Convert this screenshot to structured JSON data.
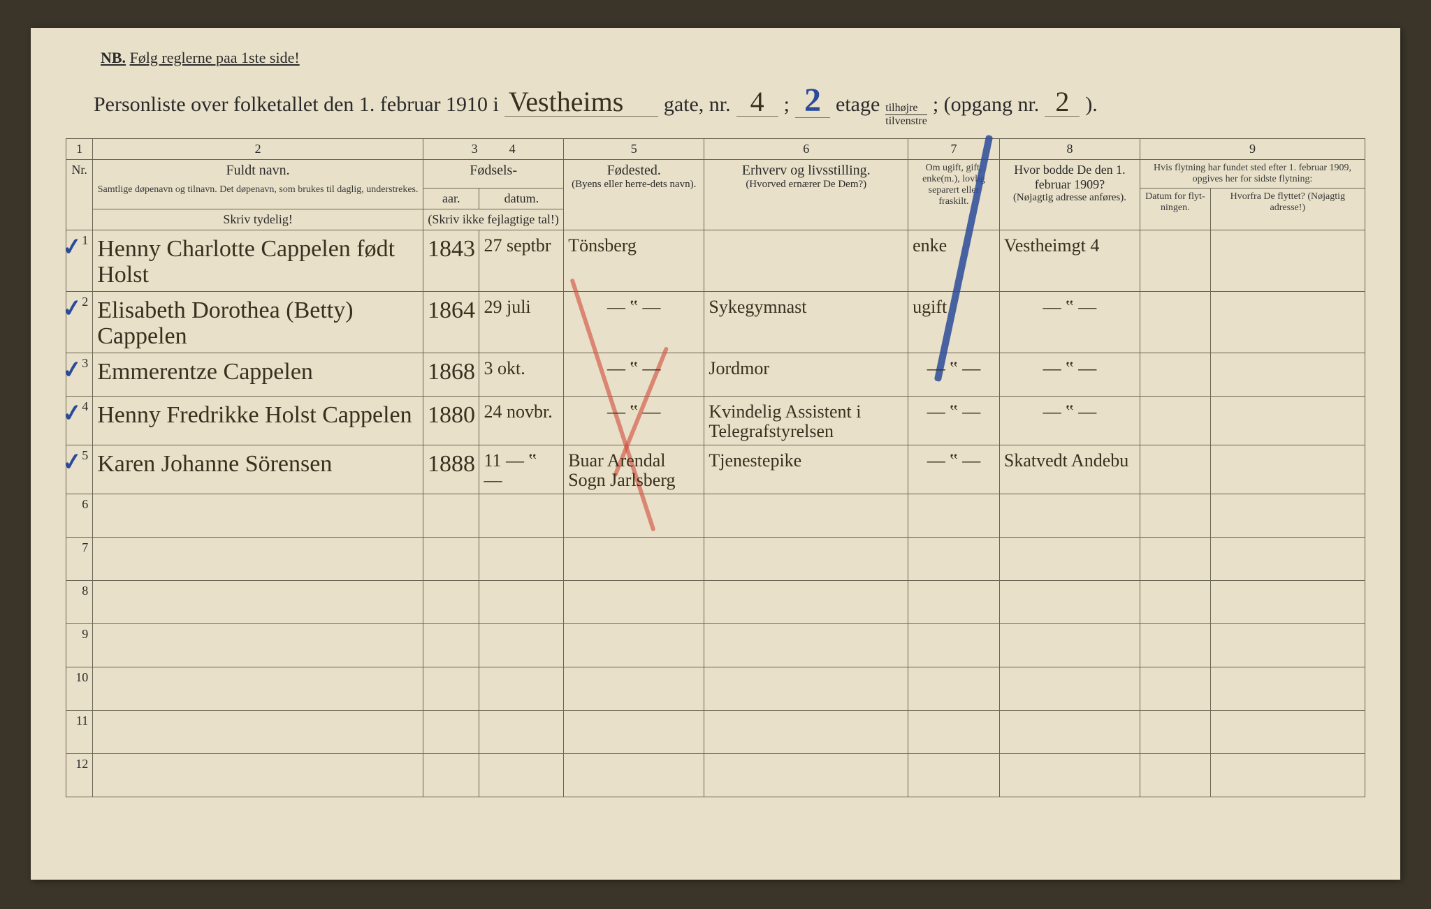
{
  "nb": {
    "prefix": "NB.",
    "text": "Følg reglerne paa 1ste side!"
  },
  "title": {
    "t1": "Personliste over folketallet den 1. februar 1910 i",
    "street": "Vestheims",
    "t2": "gate, nr.",
    "housenr": "4",
    "t3": ";",
    "floor": "2",
    "t4": "etage",
    "side_top": "tilhøjre",
    "side_bot": "tilvenstre",
    "t5": "; (opgang nr.",
    "entrance": "2",
    "t6": ")."
  },
  "colnums": [
    "1",
    "2",
    "3",
    "4",
    "5",
    "6",
    "7",
    "8",
    "9"
  ],
  "headers": {
    "nr": "Nr.",
    "name_label": "Fuldt navn.",
    "name_sub": "Samtlige døpenavn og tilnavn. Det døpenavn, som brukes til daglig, understrekes.",
    "birth_label": "Fødsels-",
    "year": "aar.",
    "date": "datum.",
    "birth_note": "(Skriv ikke fejlagtige tal!)",
    "birthplace_label": "Fødested.",
    "birthplace_sub": "(Byens eller herre-dets navn).",
    "occ_label": "Erhverv og livsstilling.",
    "occ_sub": "(Hvorved ernærer De Dem?)",
    "status_label": "Om ugift, gift, enke(m.), lovlig separert eller fraskilt.",
    "prev_label": "Hvor bodde De den 1. februar 1909?",
    "prev_sub": "(Nøjagtig adresse anføres).",
    "move_label": "Hvis flytning har fundet sted efter 1. februar 1909, opgives her for sidste flytning:",
    "move_date": "Datum for flyt-ningen.",
    "move_from": "Hvorfra De flyttet? (Nøjagtig adresse!)",
    "skriv": "Skriv tydelig!"
  },
  "rows": [
    {
      "nr": "1",
      "name": "Henny Charlotte Cappelen født Holst",
      "year": "1843",
      "date": "27 septbr",
      "birthplace": "Tönsberg",
      "occ": "",
      "status": "enke",
      "prev": "Vestheimgt 4",
      "movedate": "",
      "movefrom": ""
    },
    {
      "nr": "2",
      "name": "Elisabeth Dorothea (Betty) Cappelen",
      "year": "1864",
      "date": "29 juli",
      "birthplace": "— ‟ —",
      "occ": "Sykegymnast",
      "status": "ugift",
      "prev": "— ‟ —",
      "movedate": "",
      "movefrom": ""
    },
    {
      "nr": "3",
      "name": "Emmerentze Cappelen",
      "year": "1868",
      "date": "3 okt.",
      "birthplace": "— ‟ —",
      "occ": "Jordmor",
      "status": "— ‟ —",
      "prev": "— ‟ —",
      "movedate": "",
      "movefrom": ""
    },
    {
      "nr": "4",
      "name": "Henny Fredrikke Holst Cappelen",
      "year": "1880",
      "date": "24 novbr.",
      "birthplace": "— ‟ —",
      "occ": "Kvindelig Assistent i Telegrafstyrelsen",
      "status": "— ‟ —",
      "prev": "— ‟ —",
      "movedate": "",
      "movefrom": ""
    },
    {
      "nr": "5",
      "name": "Karen Johanne Sörensen",
      "year": "1888",
      "date": "11  — ‟ —",
      "birthplace": "Buar Arendal Sogn Jarlsberg",
      "occ": "Tjenestepike",
      "status": "— ‟ —",
      "prev": "Skatvedt Andebu",
      "movedate": "",
      "movefrom": ""
    }
  ],
  "empty_rows": [
    "6",
    "7",
    "8",
    "9",
    "10",
    "11",
    "12"
  ],
  "colors": {
    "paper": "#e8e0c8",
    "ink": "#2a2a2a",
    "handwriting": "#3a2f1f",
    "blue_pencil": "#2a4a9a",
    "red_pencil": "#d04a3a",
    "rule": "#6a6454"
  }
}
